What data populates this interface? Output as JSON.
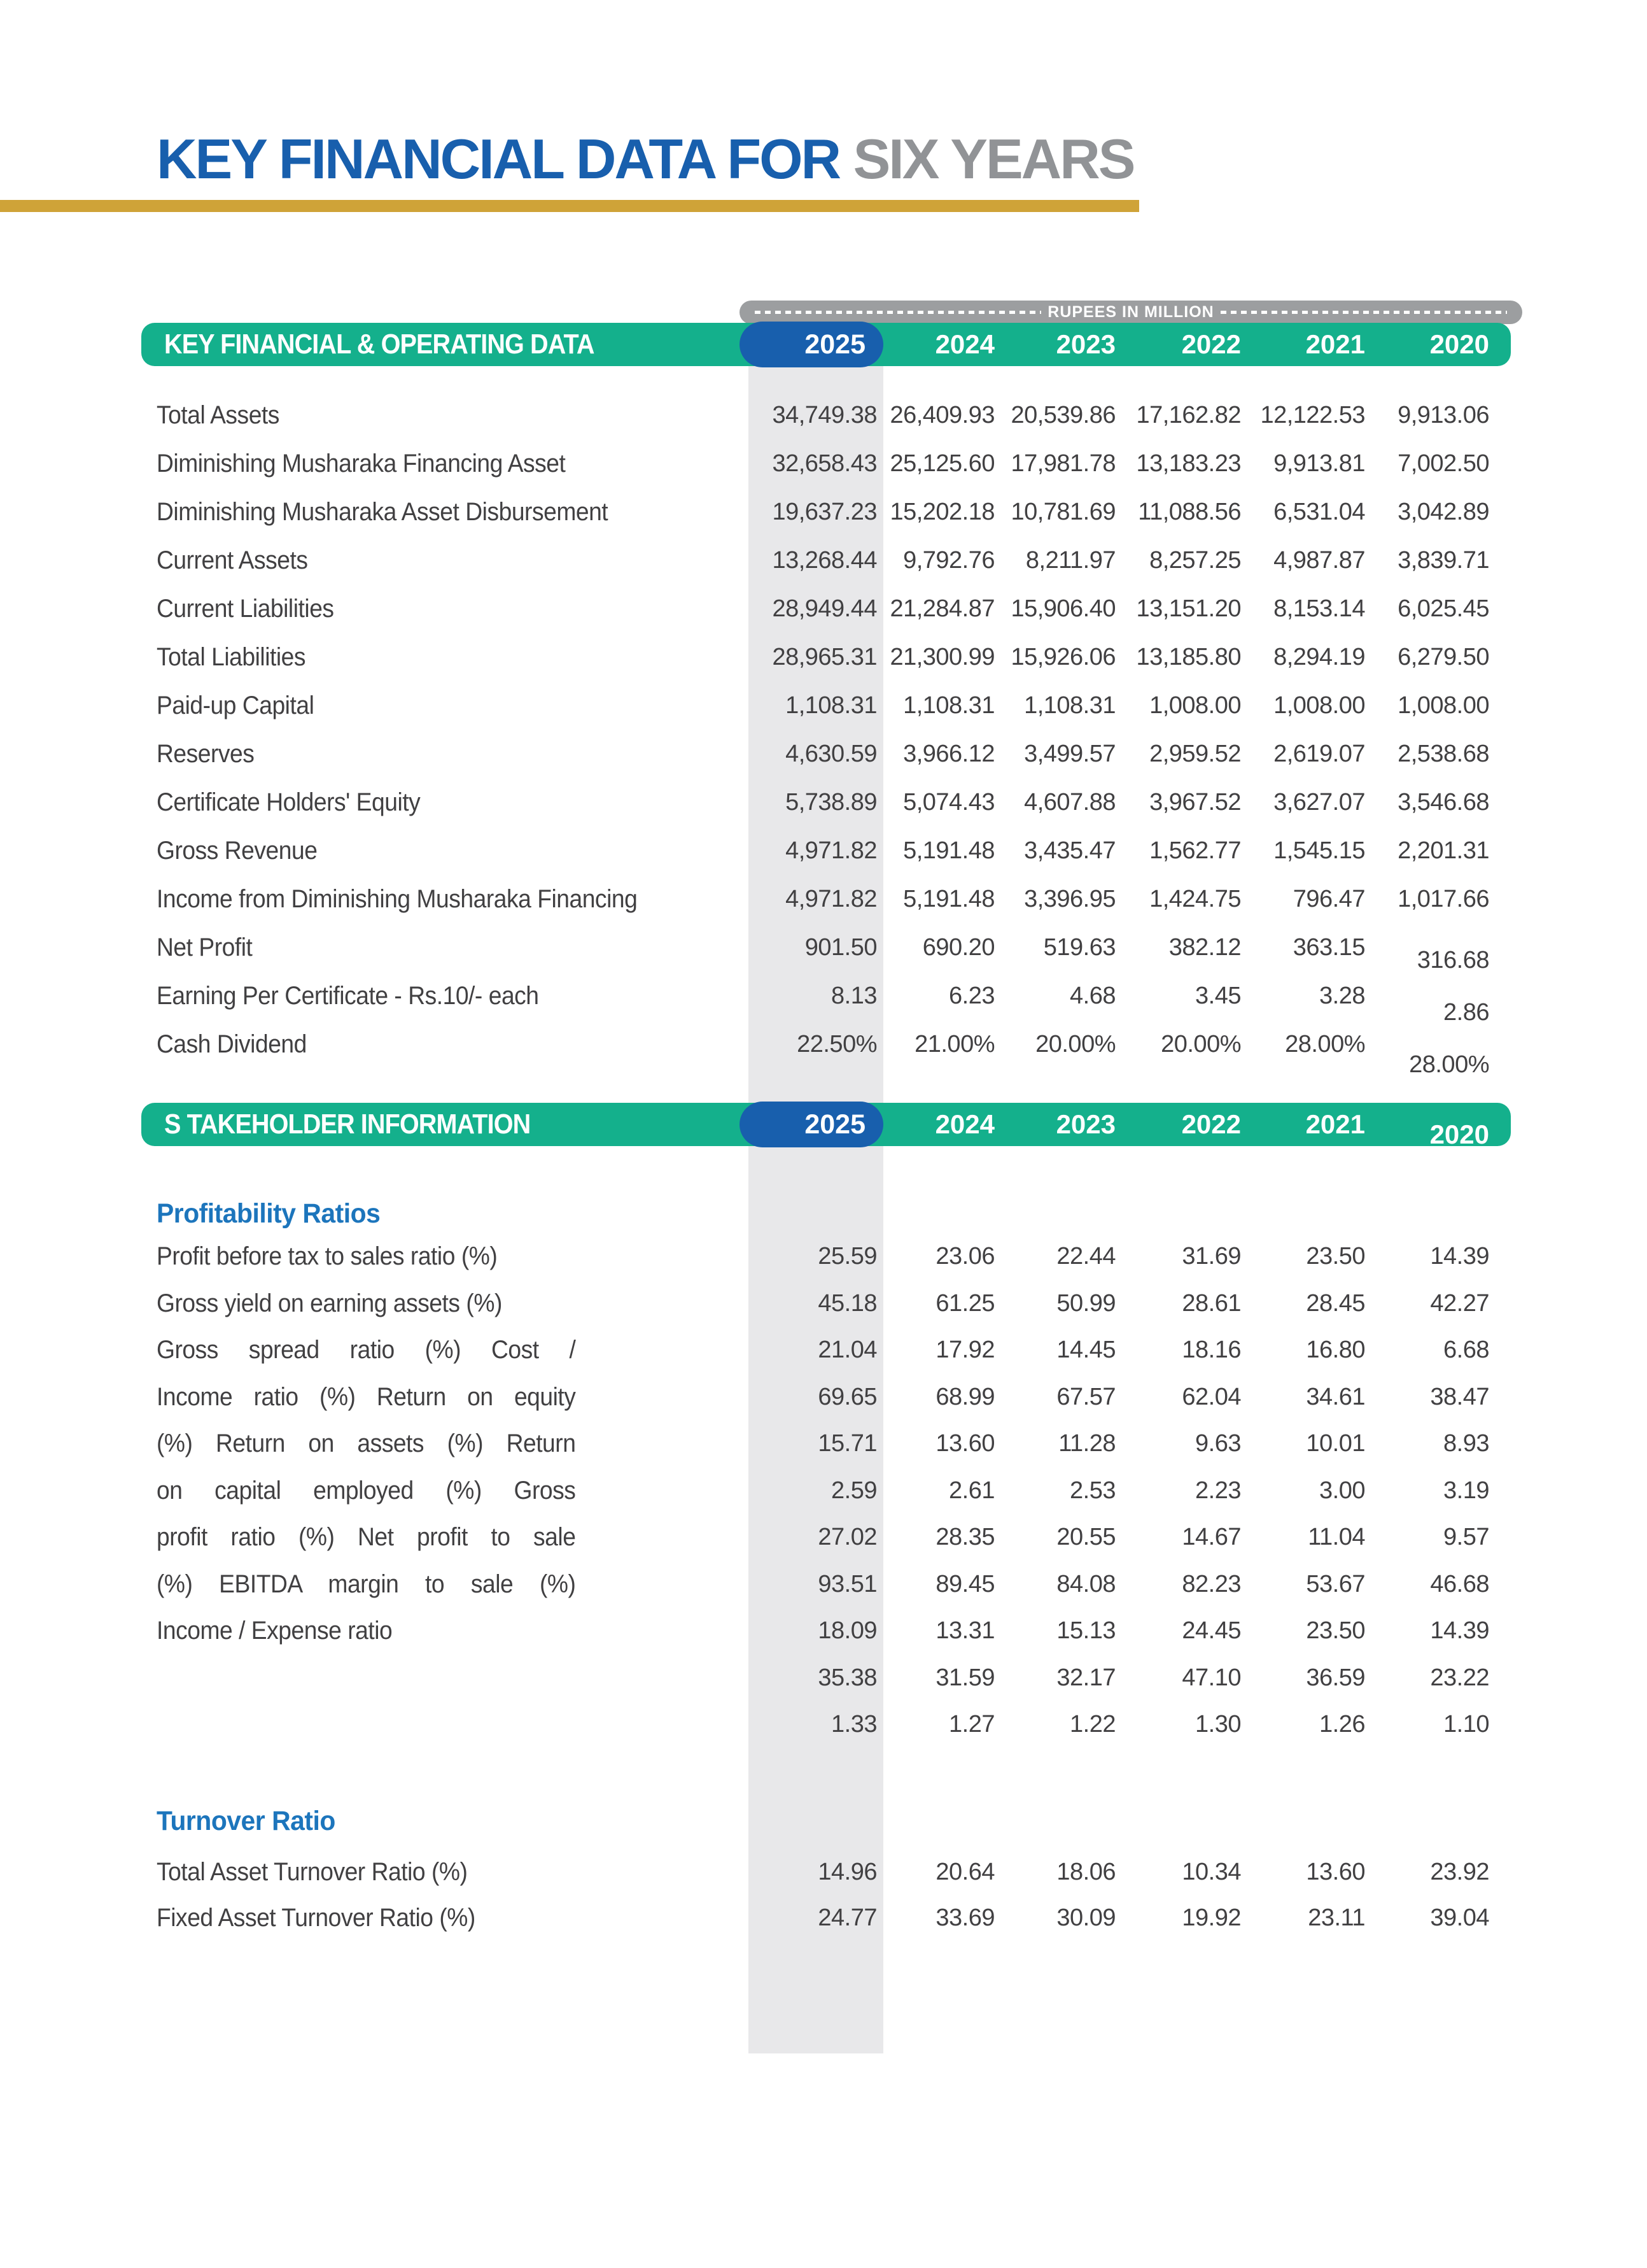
{
  "title": {
    "primary": "KEY FINANCIAL DATA FOR ",
    "secondary": "SIX YEARS"
  },
  "unit_label": "RUPEES IN MILLION",
  "years": [
    "2025",
    "2024",
    "2023",
    "2022",
    "2021",
    "2020"
  ],
  "highlight_year": "2025",
  "section1": {
    "header": "KEY FINANCIAL & OPERATING DATA",
    "rows": [
      {
        "label": "Total Assets",
        "values": [
          "34,749.38",
          "26,409.93",
          "20,539.86",
          "17,162.82",
          "12,122.53",
          "9,913.06"
        ]
      },
      {
        "label": "Diminishing Musharaka Financing Asset",
        "values": [
          "32,658.43",
          "25,125.60",
          "17,981.78",
          "13,183.23",
          "9,913.81",
          "7,002.50"
        ]
      },
      {
        "label": "Diminishing Musharaka Asset Disbursement",
        "values": [
          "19,637.23",
          "15,202.18",
          "10,781.69",
          "11,088.56",
          "6,531.04",
          "3,042.89"
        ]
      },
      {
        "label": "Current Assets",
        "values": [
          "13,268.44",
          "9,792.76",
          "8,211.97",
          "8,257.25",
          "4,987.87",
          "3,839.71"
        ]
      },
      {
        "label": "Current Liabilities",
        "values": [
          "28,949.44",
          "21,284.87",
          "15,906.40",
          "13,151.20",
          "8,153.14",
          "6,025.45"
        ]
      },
      {
        "label": "Total Liabilities",
        "values": [
          "28,965.31",
          "21,300.99",
          "15,926.06",
          "13,185.80",
          "8,294.19",
          "6,279.50"
        ]
      },
      {
        "label": "Paid-up Capital",
        "values": [
          "1,108.31",
          "1,108.31",
          "1,108.31",
          "1,008.00",
          "1,008.00",
          "1,008.00"
        ]
      },
      {
        "label": "Reserves",
        "values": [
          "4,630.59",
          "3,966.12",
          "3,499.57",
          "2,959.52",
          "2,619.07",
          "2,538.68"
        ]
      },
      {
        "label": "Certificate Holders' Equity",
        "values": [
          "5,738.89",
          "5,074.43",
          "4,607.88",
          "3,967.52",
          "3,627.07",
          "3,546.68"
        ]
      },
      {
        "label": "Gross Revenue",
        "values": [
          "4,971.82",
          "5,191.48",
          "3,435.47",
          "1,562.77",
          "1,545.15",
          "2,201.31"
        ]
      },
      {
        "label": "Income from Diminishing Musharaka Financing",
        "values": [
          "4,971.82",
          "5,191.48",
          "3,396.95",
          "1,424.75",
          "796.47",
          "1,017.66"
        ]
      },
      {
        "label": "Net Profit",
        "values": [
          "901.50",
          "690.20",
          "519.63",
          "382.12",
          "363.15",
          "316.68"
        ]
      },
      {
        "label": "Earning Per Certificate - Rs.10/- each",
        "values": [
          "8.13",
          "6.23",
          "4.68",
          "3.45",
          "3.28",
          "2.86"
        ]
      },
      {
        "label": "Cash Dividend",
        "values": [
          "22.50%",
          "21.00%",
          "20.00%",
          "20.00%",
          "28.00%",
          "28.00%"
        ]
      }
    ]
  },
  "section2": {
    "header": "S TAKEHOLDER INFORMATION",
    "profitability": {
      "heading": "Profitability Ratios",
      "rows": [
        {
          "label": "Profit before tax to sales ratio (%)",
          "values": [
            "25.59",
            "23.06",
            "22.44",
            "31.69",
            "23.50",
            "14.39"
          ]
        },
        {
          "label": "Gross yield on earning assets (%)",
          "values": [
            "45.18",
            "61.25",
            "50.99",
            "28.61",
            "28.45",
            "42.27"
          ]
        },
        {
          "label": "Gross spread ratio (%) Cost /",
          "values": [
            "21.04",
            "17.92",
            "14.45",
            "18.16",
            "16.80",
            "6.68"
          ]
        },
        {
          "label": "Income ratio (%) Return on equity",
          "values": [
            "69.65",
            "68.99",
            "67.57",
            "62.04",
            "34.61",
            "38.47"
          ]
        },
        {
          "label": "(%) Return on assets (%) Return",
          "values": [
            "15.71",
            "13.60",
            "11.28",
            "9.63",
            "10.01",
            "8.93"
          ]
        },
        {
          "label": "on capital employed (%) Gross",
          "values": [
            "2.59",
            "2.61",
            "2.53",
            "2.23",
            "3.00",
            "3.19"
          ]
        },
        {
          "label": "profit ratio (%) Net profit to sale",
          "values": [
            "27.02",
            "28.35",
            "20.55",
            "14.67",
            "11.04",
            "9.57"
          ]
        },
        {
          "label": "(%) EBITDA margin to sale (%)",
          "values": [
            "93.51",
            "89.45",
            "84.08",
            "82.23",
            "53.67",
            "46.68"
          ]
        },
        {
          "label": "Income / Expense ratio",
          "values": [
            "18.09",
            "13.31",
            "15.13",
            "24.45",
            "23.50",
            "14.39"
          ]
        },
        {
          "label": "",
          "values": [
            "35.38",
            "31.59",
            "32.17",
            "47.10",
            "36.59",
            "23.22"
          ]
        },
        {
          "label": "",
          "values": [
            "1.33",
            "1.27",
            "1.22",
            "1.30",
            "1.26",
            "1.10"
          ]
        }
      ]
    },
    "turnover": {
      "heading": "Turnover Ratio",
      "rows": [
        {
          "label": "Total Asset Turnover Ratio (%)",
          "values": [
            "14.96",
            "20.64",
            "18.06",
            "10.34",
            "13.60",
            "23.92"
          ]
        },
        {
          "label": "Fixed Asset Turnover Ratio (%)",
          "values": [
            "24.77",
            "33.69",
            "30.09",
            "19.92",
            "23.11",
            "39.04"
          ]
        }
      ]
    }
  },
  "colors": {
    "green": "#14b08c",
    "blue": "#185fad",
    "subhead_blue": "#1c75bc",
    "gold": "#cfa338",
    "gray_bar": "#9c9ea0",
    "gray_col": "#e8e8ea",
    "text": "#414042",
    "title_gray": "#919396"
  }
}
